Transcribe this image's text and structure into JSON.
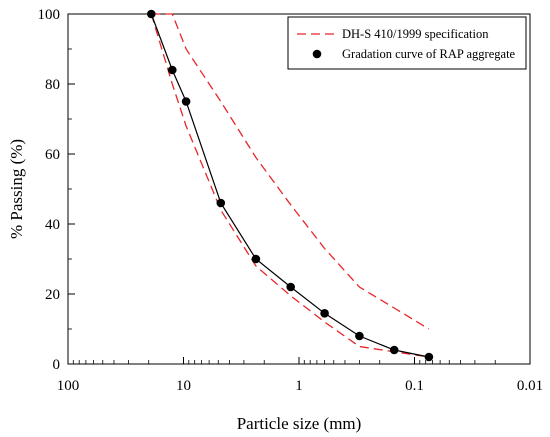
{
  "chart_data": {
    "type": "line",
    "title": "",
    "xlabel": "Particle size (mm)",
    "ylabel": "% Passing (%)",
    "x_scale": "log",
    "x_reversed": true,
    "xlim": [
      100,
      0.01
    ],
    "ylim": [
      0,
      100
    ],
    "x_ticks": [
      100,
      10,
      1,
      0.1,
      0.01
    ],
    "x_tick_labels": [
      "100",
      "10",
      "1",
      "0.1",
      "0.01"
    ],
    "y_ticks": [
      0,
      20,
      40,
      60,
      80,
      100
    ],
    "y_tick_labels": [
      "0",
      "20",
      "40",
      "60",
      "80",
      "100"
    ],
    "grid": false,
    "legend_position": "top-right",
    "series": [
      {
        "name": "DH-S 410/1999 specification",
        "kind": "spec-band",
        "color": "#e8262a",
        "style": "dashed",
        "upper": {
          "x": [
            19,
            12.5,
            9.5,
            4.75,
            2.36,
            1.18,
            0.6,
            0.3,
            0.15,
            0.075
          ],
          "y": [
            100,
            100,
            90,
            75,
            59,
            45.5,
            33,
            22,
            16,
            10
          ]
        },
        "lower": {
          "x": [
            19,
            12.5,
            9.5,
            4.75,
            2.36,
            1.18,
            0.6,
            0.3,
            0.15,
            0.075
          ],
          "y": [
            100,
            80,
            68,
            44,
            28,
            19.5,
            12,
            5,
            3.5,
            2
          ]
        }
      },
      {
        "name": "Gradation curve of RAP aggregate",
        "kind": "line-markers",
        "color": "#000000",
        "x": [
          19,
          12.5,
          9.5,
          4.75,
          2.36,
          1.18,
          0.6,
          0.3,
          0.15,
          0.075
        ],
        "y": [
          100,
          84,
          75,
          46,
          30,
          22,
          14.5,
          8,
          4,
          2
        ]
      }
    ]
  }
}
